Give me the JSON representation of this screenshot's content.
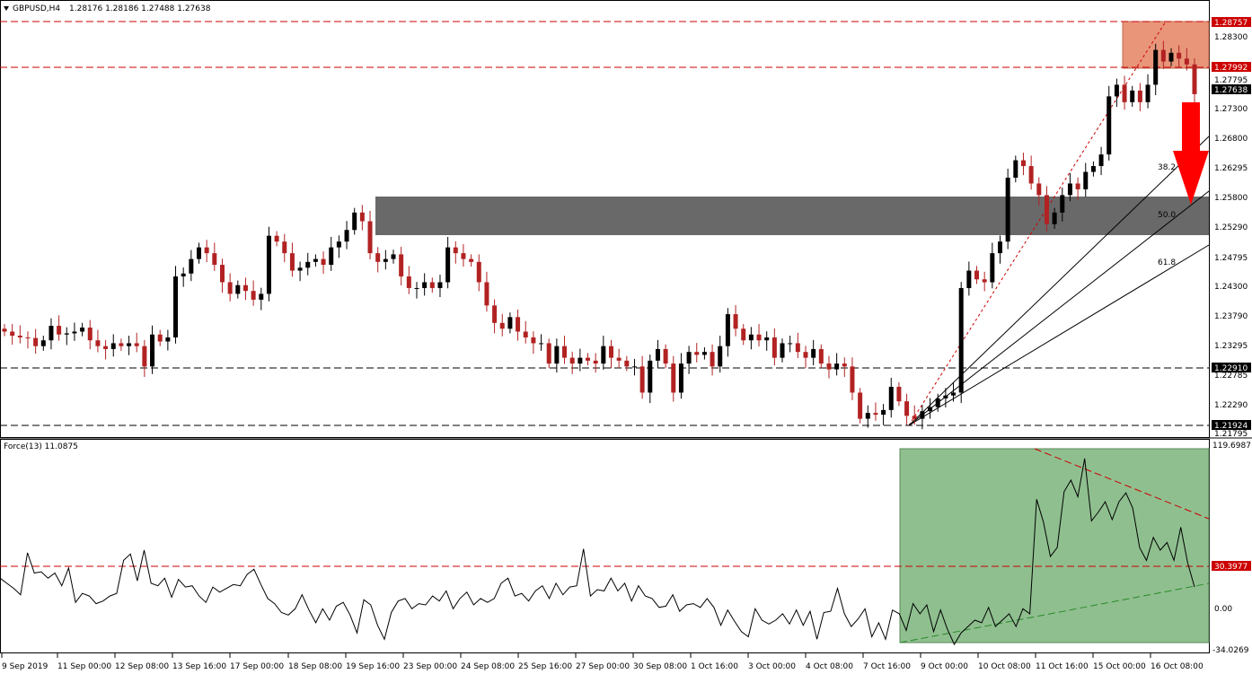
{
  "header": {
    "symbol_timeframe": "GBPUSD,H4",
    "ohlc": "1.28176 1.28186 1.27488 1.27638"
  },
  "indicator": {
    "title": "Force(13) 11.0875"
  },
  "colors": {
    "bull": "#000000",
    "bear": "#b22222",
    "resistance_zone": "#e8957a",
    "support_zone": "#696969",
    "force_zone": "#8fbf8f",
    "arrow": "#ff0000",
    "dashed_red": "#cc0000",
    "dashed_green": "#2a8a2a"
  },
  "price_axis": {
    "ticks": [
      "1.28300",
      "1.27795",
      "1.27300",
      "1.26800",
      "1.26295",
      "1.25800",
      "1.25290",
      "1.24795",
      "1.24300",
      "1.23790",
      "1.23295",
      "1.22785",
      "1.22290",
      "1.21795"
    ],
    "tagged": [
      {
        "value": "1.28757",
        "style": "red"
      },
      {
        "value": "1.27992",
        "style": "red"
      },
      {
        "value": "1.27638",
        "style": "black"
      },
      {
        "value": "1.22910",
        "style": "black"
      },
      {
        "value": "1.21924",
        "style": "black"
      }
    ]
  },
  "force_axis": {
    "ticks": [
      "119.6987",
      "0.00",
      "-34.0269"
    ],
    "tagged": [
      {
        "value": "30.3977",
        "style": "red"
      }
    ]
  },
  "fib_labels": [
    "38.2",
    "50.0",
    "61.8"
  ],
  "time_axis": [
    "9 Sep 2019",
    "11 Sep 00:00",
    "12 Sep 08:00",
    "13 Sep 16:00",
    "17 Sep 00:00",
    "18 Sep 08:00",
    "19 Sep 16:00",
    "23 Sep 00:00",
    "24 Sep 08:00",
    "25 Sep 16:00",
    "27 Sep 00:00",
    "30 Sep 08:00",
    "1 Oct 16:00",
    "3 Oct 00:00",
    "4 Oct 08:00",
    "7 Oct 16:00",
    "9 Oct 00:00",
    "10 Oct 08:00",
    "11 Oct 16:00",
    "15 Oct 00:00",
    "16 Oct 08:00"
  ],
  "chart_data": {
    "type": "candlestick",
    "symbol": "GBPUSD",
    "timeframe": "H4",
    "ylim": [
      1.2175,
      1.2895
    ],
    "closes": [
      1.2355,
      1.2348,
      1.2345,
      1.2344,
      1.233,
      1.234,
      1.2365,
      1.235,
      1.2352,
      1.2355,
      1.2362,
      1.234,
      1.233,
      1.2325,
      1.2335,
      1.233,
      1.2335,
      1.233,
      1.2295,
      1.235,
      1.2338,
      1.2345,
      1.245,
      1.2455,
      1.248,
      1.25,
      1.249,
      1.247,
      1.244,
      1.242,
      1.2435,
      1.2425,
      1.241,
      1.242,
      1.252,
      1.251,
      1.249,
      1.246,
      1.2465,
      1.2475,
      1.248,
      1.247,
      1.25,
      1.251,
      1.253,
      1.256,
      1.2545,
      1.249,
      1.2475,
      1.248,
      1.2488,
      1.245,
      1.243,
      1.243,
      1.244,
      1.243,
      1.244,
      1.25,
      1.249,
      1.248,
      1.2475,
      1.244,
      1.24,
      1.237,
      1.236,
      1.238,
      1.2355,
      1.2345,
      1.2335,
      1.2335,
      1.23,
      1.233,
      1.231,
      1.23,
      1.231,
      1.2305,
      1.23,
      1.233,
      1.231,
      1.2305,
      1.2295,
      1.2295,
      1.225,
      1.2305,
      1.2325,
      1.23,
      1.225,
      1.23,
      1.232,
      1.2315,
      1.232,
      1.2295,
      1.233,
      1.2385,
      1.236,
      1.234,
      1.235,
      1.234,
      1.2345,
      1.231,
      1.2335,
      1.2335,
      1.232,
      1.231,
      1.2325,
      1.23,
      1.229,
      1.23,
      1.2295,
      1.225,
      1.2205,
      1.2215,
      1.2212,
      1.222,
      1.226,
      1.2235,
      1.221,
      1.2205,
      1.2218,
      1.2225,
      1.224,
      1.2245,
      1.225,
      1.243,
      1.246,
      1.2445,
      1.244,
      1.249,
      1.251,
      1.262,
      1.265,
      1.264,
      1.261,
      1.259,
      1.254,
      1.256,
      1.259,
      1.261,
      1.26,
      1.263,
      1.264,
      1.266,
      1.276,
      1.278,
      1.275,
      1.277,
      1.275,
      1.278,
      1.284,
      1.282,
      1.2835,
      1.2825,
      1.2815,
      1.27638
    ]
  },
  "force_data": [
    18,
    14,
    10,
    5,
    38,
    22,
    23,
    18,
    22,
    12,
    26,
    -1,
    6,
    4,
    -2,
    0,
    4,
    6,
    32,
    37,
    16,
    40,
    14,
    12,
    18,
    3,
    17,
    11,
    12,
    4,
    -1,
    11,
    7,
    10,
    13,
    12,
    21,
    25,
    13,
    2,
    -2,
    -9,
    -11,
    -6,
    5,
    -7,
    -17,
    -6,
    -15,
    -4,
    -1,
    -11,
    -25,
    1,
    -3,
    -19,
    -30,
    -9,
    0,
    2,
    -6,
    -2,
    -3,
    4,
    0,
    8,
    -6,
    2,
    7,
    -3,
    2,
    -1,
    2,
    14,
    18,
    4,
    6,
    0,
    8,
    12,
    2,
    14,
    5,
    11,
    12,
    41,
    4,
    9,
    8,
    18,
    8,
    14,
    0,
    12,
    4,
    2,
    -5,
    -4,
    5,
    -8,
    -3,
    -2,
    -5,
    2,
    -5,
    -19,
    -7,
    -16,
    -24,
    -28,
    -6,
    -15,
    -18,
    -15,
    -10,
    -18,
    -7,
    -19,
    -8,
    -30,
    -9,
    -8,
    10,
    -10,
    -20,
    -14,
    -6,
    -28,
    -17,
    -30,
    -7,
    -10,
    -23,
    -2,
    -10,
    -3,
    -24,
    -7,
    -22,
    -34,
    -25,
    -20,
    -15,
    -17,
    -5,
    -20,
    -15,
    -10,
    -20,
    -6,
    -10,
    80,
    62,
    35,
    42,
    86,
    95,
    82,
    112,
    63,
    70,
    78,
    64,
    78,
    85,
    73,
    42,
    32,
    50,
    40,
    46,
    32,
    58,
    30,
    11
  ]
}
